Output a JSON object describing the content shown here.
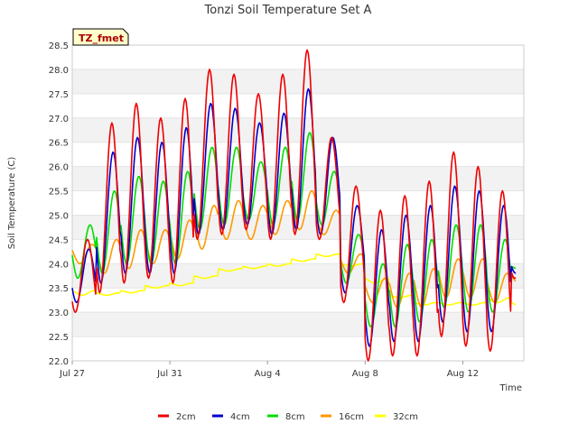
{
  "chart_data": {
    "type": "line",
    "title": "Tonzi Soil Temperature Set A",
    "xlabel": "Time",
    "ylabel": "Soil Temperature (C)",
    "badge": "TZ_fmet",
    "xlim": [
      "2023-07-27",
      "2023-08-14T12:00"
    ],
    "ylim": [
      22.0,
      28.5
    ],
    "x_ticks": [
      {
        "label": "Jul 27",
        "date": "2023-07-27"
      },
      {
        "label": "Jul 31",
        "date": "2023-07-31"
      },
      {
        "label": "Aug 4",
        "date": "2023-08-04"
      },
      {
        "label": "Aug 8",
        "date": "2023-08-08"
      },
      {
        "label": "Aug 12",
        "date": "2023-08-12"
      }
    ],
    "y_ticks": [
      "22.0",
      "22.5",
      "23.0",
      "23.5",
      "24.0",
      "24.5",
      "25.0",
      "25.5",
      "26.0",
      "26.5",
      "27.0",
      "27.5",
      "28.0",
      "28.5"
    ],
    "grid": "horizontal bands",
    "legend_position": "bottom",
    "days": [
      "2023-07-27",
      "2023-07-28",
      "2023-07-29",
      "2023-07-30",
      "2023-07-31",
      "2023-08-01",
      "2023-08-02",
      "2023-08-03",
      "2023-08-04",
      "2023-08-05",
      "2023-08-06",
      "2023-08-07",
      "2023-08-08",
      "2023-08-09",
      "2023-08-10",
      "2023-08-11",
      "2023-08-12",
      "2023-08-13",
      "2023-08-14"
    ],
    "series": [
      {
        "name": "2cm",
        "color": "#ee0000",
        "daily_max": [
          24.5,
          26.9,
          27.3,
          27.0,
          27.4,
          28.0,
          27.9,
          27.5,
          27.9,
          28.4,
          26.6,
          25.6,
          25.1,
          25.4,
          25.7,
          26.3,
          26.0,
          25.5,
          24.5
        ],
        "daily_min": [
          23.0,
          23.4,
          23.6,
          23.7,
          23.6,
          24.5,
          24.6,
          24.7,
          24.5,
          24.6,
          24.5,
          23.2,
          22.0,
          22.1,
          22.1,
          22.5,
          22.3,
          22.2,
          23.7
        ]
      },
      {
        "name": "4cm",
        "color": "#0000cc",
        "daily_max": [
          24.3,
          26.3,
          26.6,
          26.5,
          26.8,
          27.3,
          27.2,
          26.9,
          27.1,
          27.6,
          26.6,
          25.2,
          24.7,
          25.0,
          25.2,
          25.6,
          25.5,
          25.2,
          24.3
        ],
        "daily_min": [
          23.2,
          23.6,
          23.8,
          23.8,
          23.8,
          24.6,
          24.7,
          24.8,
          24.6,
          24.7,
          24.6,
          23.4,
          22.3,
          22.4,
          22.4,
          22.8,
          22.6,
          22.6,
          23.8
        ]
      },
      {
        "name": "8cm",
        "color": "#00dd00",
        "daily_max": [
          24.8,
          25.5,
          25.8,
          25.7,
          25.9,
          26.4,
          26.4,
          26.1,
          26.4,
          26.7,
          25.9,
          24.6,
          24.0,
          24.4,
          24.5,
          24.8,
          24.8,
          24.5,
          24.0
        ],
        "daily_min": [
          23.7,
          23.8,
          24.0,
          24.0,
          24.0,
          24.7,
          24.8,
          24.9,
          24.8,
          24.9,
          24.8,
          23.6,
          22.7,
          22.7,
          22.8,
          23.1,
          23.0,
          23.0,
          23.9
        ]
      },
      {
        "name": "16cm",
        "color": "#ff9900",
        "daily_max": [
          24.4,
          24.5,
          24.7,
          24.7,
          24.9,
          25.2,
          25.3,
          25.2,
          25.3,
          25.5,
          25.1,
          24.2,
          23.7,
          23.8,
          23.9,
          24.1,
          24.1,
          23.8,
          23.8
        ],
        "daily_min": [
          24.0,
          23.8,
          23.9,
          24.0,
          24.1,
          24.3,
          24.5,
          24.5,
          24.6,
          24.7,
          24.6,
          23.8,
          23.2,
          23.1,
          23.1,
          23.3,
          23.3,
          23.2,
          23.6
        ]
      },
      {
        "name": "32cm",
        "color": "#ffff00",
        "daily_max": [
          23.45,
          23.4,
          23.45,
          23.55,
          23.6,
          23.75,
          23.9,
          23.95,
          24.0,
          24.1,
          24.2,
          24.0,
          23.7,
          23.35,
          23.2,
          23.2,
          23.2,
          23.3,
          23.2
        ],
        "daily_min": [
          23.35,
          23.35,
          23.4,
          23.5,
          23.55,
          23.7,
          23.85,
          23.9,
          23.95,
          24.05,
          24.15,
          23.95,
          23.6,
          23.3,
          23.15,
          23.15,
          23.15,
          23.2,
          23.1
        ]
      }
    ]
  }
}
